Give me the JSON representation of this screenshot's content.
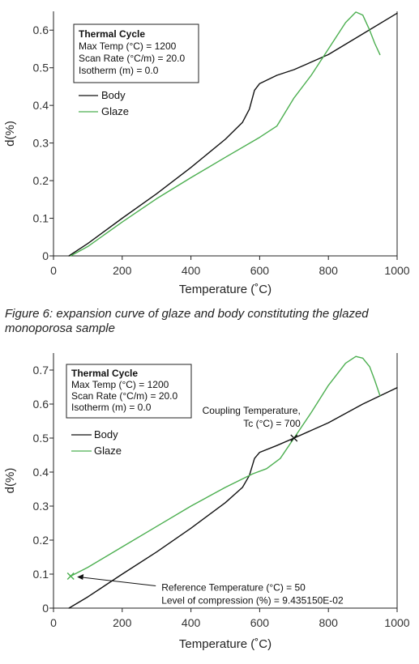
{
  "caption": "Figure 6: expansion curve of glaze and body constituting the glazed monoporosa sample",
  "chart_data": [
    {
      "type": "line",
      "xlabel": "Temperature (˚C)",
      "ylabel": "d(%)",
      "xlim": [
        0,
        1000
      ],
      "ylim": [
        0,
        0.65
      ],
      "x_ticks": [
        "0",
        "200",
        "400",
        "600",
        "800",
        "1000"
      ],
      "y_ticks": [
        "0",
        "0.1",
        "0.2",
        "0.3",
        "0.4",
        "0.5",
        "0.6"
      ],
      "grid": false,
      "info_box": {
        "title": "Thermal Cycle",
        "lines": [
          "Max Temp (°C) = 1200",
          "Scan Rate (°C/m) = 20.0",
          "Isotherm (m) = 0.0"
        ]
      },
      "legend_position": "top-left",
      "series": [
        {
          "name": "Body",
          "color": "#111111",
          "x": [
            45,
            100,
            200,
            300,
            400,
            500,
            550,
            570,
            585,
            600,
            650,
            700,
            800,
            900,
            1000
          ],
          "y": [
            0.0,
            0.033,
            0.1,
            0.165,
            0.235,
            0.31,
            0.355,
            0.39,
            0.44,
            0.458,
            0.48,
            0.495,
            0.535,
            0.59,
            0.645
          ]
        },
        {
          "name": "Glaze",
          "color": "#4caf50",
          "x": [
            50,
            100,
            200,
            300,
            400,
            500,
            600,
            650,
            700,
            750,
            800,
            850,
            880,
            900,
            920,
            935,
            950
          ],
          "y": [
            0.0,
            0.025,
            0.09,
            0.152,
            0.208,
            0.262,
            0.315,
            0.345,
            0.42,
            0.48,
            0.55,
            0.62,
            0.648,
            0.64,
            0.6,
            0.565,
            0.535
          ]
        }
      ]
    },
    {
      "type": "line",
      "xlabel": "Temperature (˚C)",
      "ylabel": "d(%)",
      "xlim": [
        0,
        1000
      ],
      "ylim": [
        0,
        0.75
      ],
      "x_ticks": [
        "0",
        "200",
        "400",
        "600",
        "800",
        "1000"
      ],
      "y_ticks": [
        "0",
        "0.1",
        "0.2",
        "0.3",
        "0.4",
        "0.5",
        "0.6",
        "0.7"
      ],
      "grid": false,
      "info_box": {
        "title": "Thermal Cycle",
        "lines": [
          "Max Temp (°C) = 1200",
          "Scan Rate (°C/m) = 20.0",
          "Isotherm (m) = 0.0"
        ]
      },
      "legend_position": "top-left",
      "annotations": {
        "coupling": {
          "lines": [
            "Coupling Temperature,",
            "Tc (°C) = 700"
          ],
          "x": 700,
          "y": 0.5
        },
        "reference": {
          "lines": [
            "Reference Temperature (°C) = 50",
            "Level of compression (%) = 9.435150E-02"
          ],
          "x": 50,
          "y": 0.094
        }
      },
      "series": [
        {
          "name": "Body",
          "color": "#111111",
          "x": [
            45,
            100,
            200,
            300,
            400,
            500,
            550,
            570,
            585,
            600,
            650,
            700,
            800,
            900,
            1000
          ],
          "y": [
            0.0,
            0.033,
            0.1,
            0.165,
            0.235,
            0.31,
            0.355,
            0.39,
            0.44,
            0.458,
            0.478,
            0.5,
            0.545,
            0.6,
            0.648
          ]
        },
        {
          "name": "Glaze",
          "color": "#4caf50",
          "x": [
            50,
            100,
            200,
            300,
            400,
            500,
            580,
            620,
            660,
            700,
            750,
            800,
            850,
            880,
            900,
            920,
            935,
            950
          ],
          "y": [
            0.094,
            0.12,
            0.18,
            0.24,
            0.3,
            0.355,
            0.395,
            0.41,
            0.44,
            0.5,
            0.575,
            0.655,
            0.72,
            0.74,
            0.735,
            0.71,
            0.67,
            0.625
          ]
        }
      ]
    }
  ]
}
